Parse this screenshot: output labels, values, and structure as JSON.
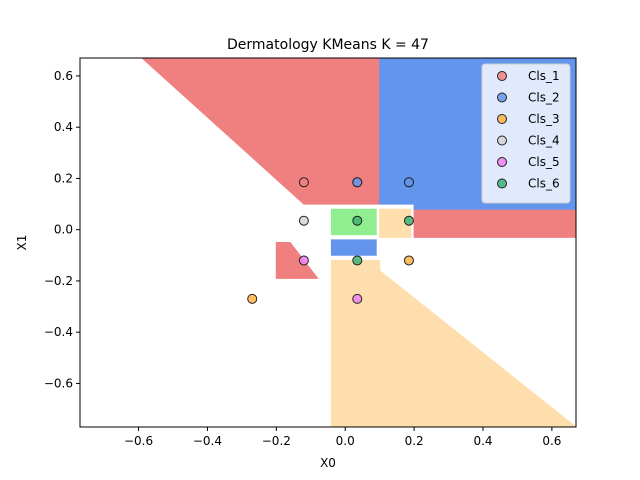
{
  "chart_data": {
    "type": "scatter",
    "title": "Dermatology KMeans K = 47",
    "xlabel": "X0",
    "ylabel": "X1",
    "xlim": [
      -0.77,
      0.67
    ],
    "ylim": [
      -0.77,
      0.67
    ],
    "xticks": [
      -0.6,
      -0.4,
      -0.2,
      0.0,
      0.2,
      0.4,
      0.6
    ],
    "yticks": [
      -0.6,
      -0.4,
      -0.2,
      0.0,
      0.2,
      0.4,
      0.6
    ],
    "xtick_labels": [
      "−0.6",
      "−0.4",
      "−0.2",
      "0.0",
      "0.2",
      "0.4",
      "0.6"
    ],
    "ytick_labels": [
      "−0.6",
      "−0.4",
      "−0.2",
      "0.0",
      "0.2",
      "0.4",
      "0.6"
    ],
    "legend_position": "top-right",
    "series": [
      {
        "name": "Cls_1",
        "color": "#f08080",
        "points": [
          [
            -0.12,
            0.185
          ],
          [
            0.035,
            0.185
          ]
        ]
      },
      {
        "name": "Cls_2",
        "color": "#6495ed",
        "points": [
          [
            0.035,
            0.185
          ],
          [
            0.185,
            0.185
          ],
          [
            0.185,
            0.185
          ]
        ]
      },
      {
        "name": "Cls_3",
        "color": "#ffb347",
        "points": [
          [
            -0.27,
            -0.27
          ],
          [
            0.185,
            -0.12
          ]
        ]
      },
      {
        "name": "Cls_4",
        "color": "#d3d3d3",
        "points": [
          [
            -0.12,
            0.035
          ]
        ]
      },
      {
        "name": "Cls_5",
        "color": "#ee82ee",
        "points": [
          [
            -0.12,
            -0.12
          ],
          [
            0.035,
            -0.27
          ]
        ]
      },
      {
        "name": "Cls_6",
        "color": "#3cb371",
        "points": [
          [
            0.035,
            0.035
          ],
          [
            0.185,
            0.035
          ],
          [
            0.035,
            -0.12
          ]
        ]
      }
    ],
    "regions": [
      {
        "name": "Cls_1",
        "color": "#f08080",
        "polygons": [
          [
            [
              -0.59,
              0.67
            ],
            [
              0.1,
              0.67
            ],
            [
              0.1,
              0.1
            ],
            [
              -0.12,
              0.1
            ],
            [
              -0.59,
              0.67
            ]
          ],
          [
            [
              0.2,
              0.08
            ],
            [
              0.67,
              0.08
            ],
            [
              0.67,
              -0.03
            ],
            [
              0.2,
              -0.03
            ]
          ],
          [
            [
              -0.2,
              -0.05
            ],
            [
              -0.16,
              -0.05
            ],
            [
              -0.08,
              -0.19
            ],
            [
              -0.2,
              -0.19
            ]
          ]
        ]
      },
      {
        "name": "Cls_2",
        "color": "#6495ed",
        "polygons": [
          [
            [
              0.1,
              0.67
            ],
            [
              0.67,
              0.67
            ],
            [
              0.67,
              0.08
            ],
            [
              0.2,
              0.08
            ],
            [
              0.2,
              0.1
            ],
            [
              0.1,
              0.1
            ]
          ],
          [
            [
              -0.04,
              -0.04
            ],
            [
              0.09,
              -0.04
            ],
            [
              0.09,
              -0.1
            ],
            [
              -0.04,
              -0.1
            ]
          ]
        ]
      },
      {
        "name": "Cls_3",
        "color": "#ffdead",
        "polygons": [
          [
            [
              -0.04,
              -0.12
            ],
            [
              0.1,
              -0.12
            ],
            [
              0.1,
              -0.16
            ],
            [
              0.67,
              -0.77
            ],
            [
              -0.04,
              -0.77
            ]
          ],
          [
            [
              0.1,
              0.08
            ],
            [
              0.19,
              0.08
            ],
            [
              0.19,
              -0.03
            ],
            [
              0.1,
              -0.03
            ]
          ]
        ]
      },
      {
        "name": "Cls_6",
        "color": "#90ee90",
        "polygons": [
          [
            [
              -0.04,
              0.08
            ],
            [
              0.09,
              0.08
            ],
            [
              0.09,
              -0.02
            ],
            [
              -0.04,
              -0.02
            ]
          ]
        ]
      }
    ]
  }
}
